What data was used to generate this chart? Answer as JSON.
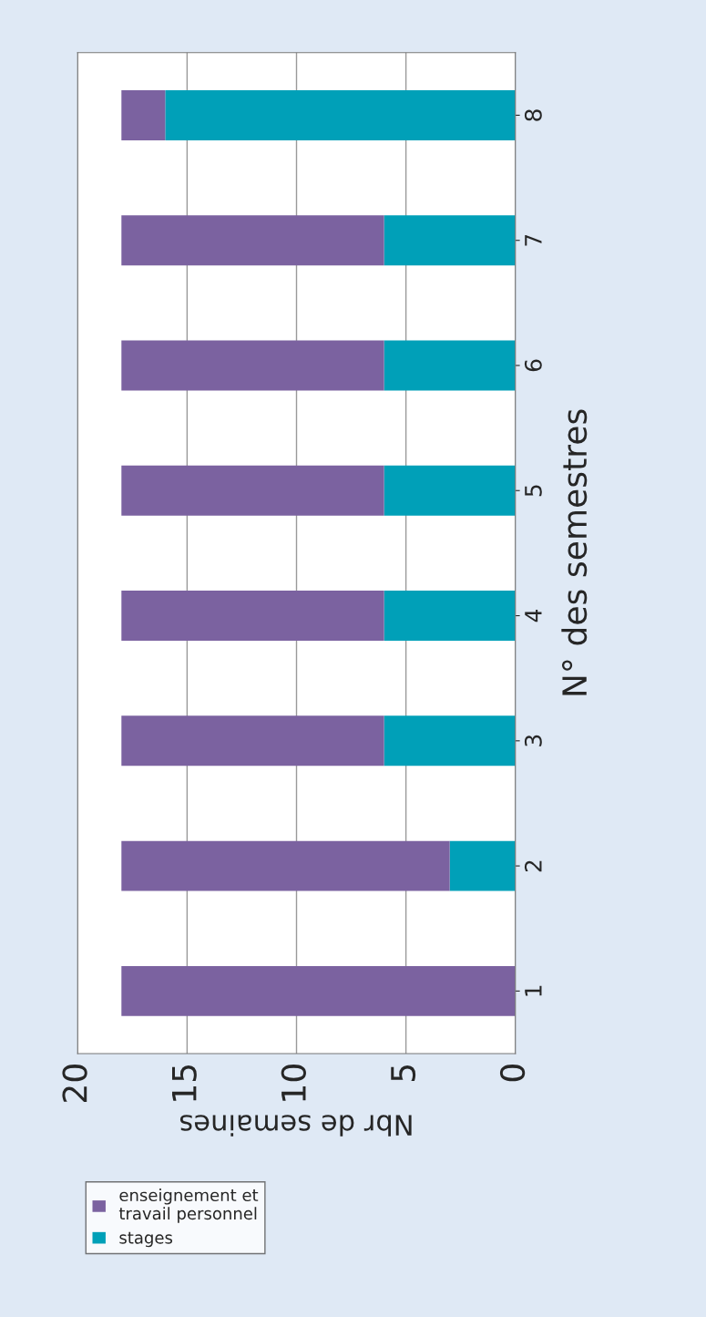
{
  "chart_data": {
    "type": "bar",
    "orientation": "horizontal",
    "stacked": true,
    "xlabel": "Nbr de semaines",
    "ylabel": "N° des semestres",
    "categories": [
      "8",
      "7",
      "6",
      "5",
      "4",
      "3",
      "2",
      "1"
    ],
    "series": [
      {
        "name": "stages",
        "color": "#00a0b8",
        "values": [
          16,
          6,
          6,
          6,
          6,
          6,
          3,
          0
        ]
      },
      {
        "name": "enseignement et\ntravail personnel",
        "color": "#7b62a0",
        "values": [
          2,
          12,
          12,
          12,
          12,
          12,
          15,
          18
        ]
      }
    ],
    "xlim": [
      20,
      0
    ],
    "xticks": [
      20,
      15,
      10,
      5,
      0
    ],
    "grid": "x",
    "legend": "bottom left"
  }
}
